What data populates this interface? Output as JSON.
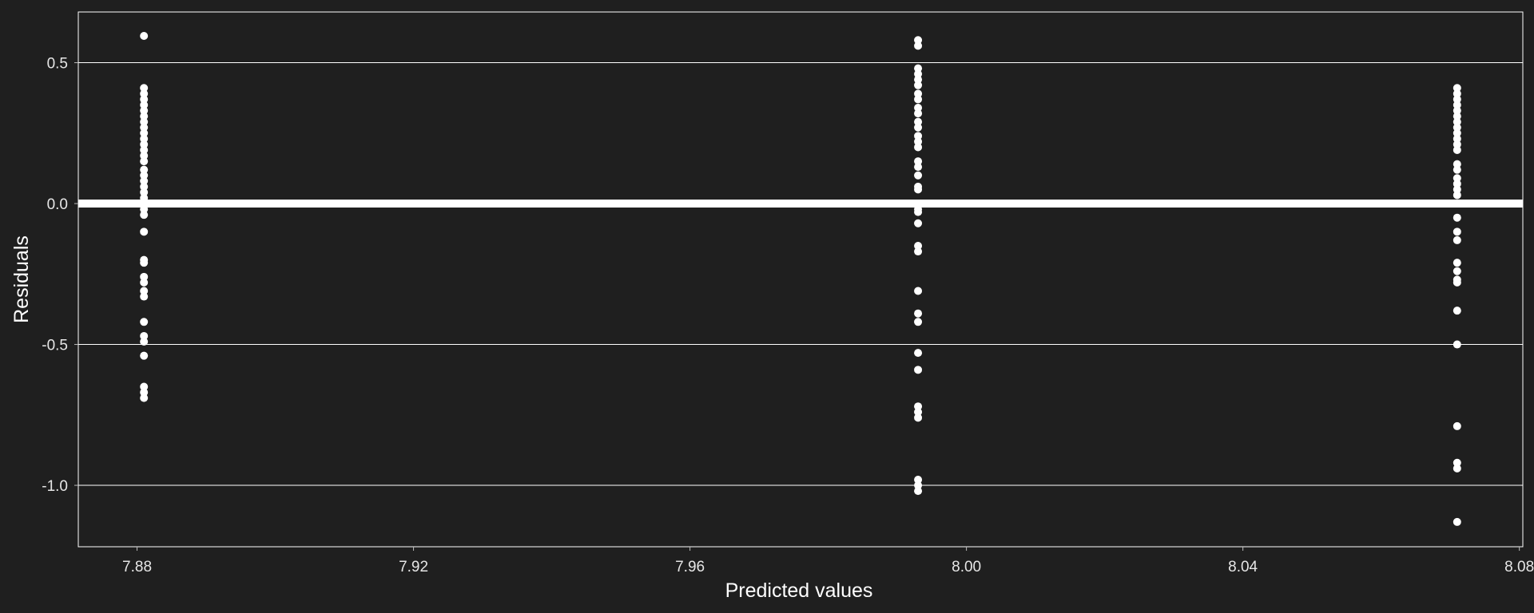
{
  "chart_data": {
    "type": "scatter",
    "title": "",
    "xlabel": "Predicted values",
    "ylabel": "Residuals",
    "xlim": [
      7.8715,
      8.0805
    ],
    "ylim": [
      -1.218,
      0.68
    ],
    "xticks": [
      "7.88",
      "7.92",
      "7.96",
      "8.00",
      "8.04",
      "8.08"
    ],
    "yticks": [
      "0.5",
      "0.0",
      "-0.5",
      "-1.0"
    ],
    "grid": "horizontal",
    "reference_line": 0,
    "colors": {
      "background": "#1f1f1f",
      "points": "#ffffff",
      "grid": "#ffffff",
      "reference_line": "#ffffff"
    },
    "series": [
      {
        "x": 7.881,
        "y": [
          0.595,
          0.41,
          0.39,
          0.37,
          0.35,
          0.33,
          0.31,
          0.29,
          0.27,
          0.25,
          0.23,
          0.21,
          0.19,
          0.17,
          0.15,
          0.12,
          0.1,
          0.08,
          0.06,
          0.04,
          0.02,
          0.0,
          -0.02,
          -0.04,
          -0.1,
          -0.2,
          -0.21,
          -0.26,
          -0.28,
          -0.31,
          -0.33,
          -0.42,
          -0.47,
          -0.49,
          -0.54,
          -0.65,
          -0.67,
          -0.69
        ]
      },
      {
        "x": 7.993,
        "y": [
          0.58,
          0.56,
          0.48,
          0.46,
          0.44,
          0.42,
          0.39,
          0.37,
          0.34,
          0.32,
          0.29,
          0.27,
          0.24,
          0.22,
          0.2,
          0.15,
          0.13,
          0.1,
          0.06,
          0.05,
          0.0,
          -0.02,
          -0.03,
          -0.07,
          -0.15,
          -0.17,
          -0.31,
          -0.39,
          -0.42,
          -0.53,
          -0.59,
          -0.72,
          -0.74,
          -0.76,
          -0.98,
          -1.0,
          -1.02
        ]
      },
      {
        "x": 8.071,
        "y": [
          0.41,
          0.39,
          0.37,
          0.35,
          0.33,
          0.31,
          0.29,
          0.27,
          0.25,
          0.23,
          0.21,
          0.19,
          0.14,
          0.12,
          0.09,
          0.07,
          0.05,
          0.03,
          -0.05,
          -0.1,
          -0.13,
          -0.21,
          -0.24,
          -0.27,
          -0.28,
          -0.38,
          -0.5,
          -0.79,
          -0.92,
          -0.94,
          -1.13
        ]
      }
    ]
  }
}
